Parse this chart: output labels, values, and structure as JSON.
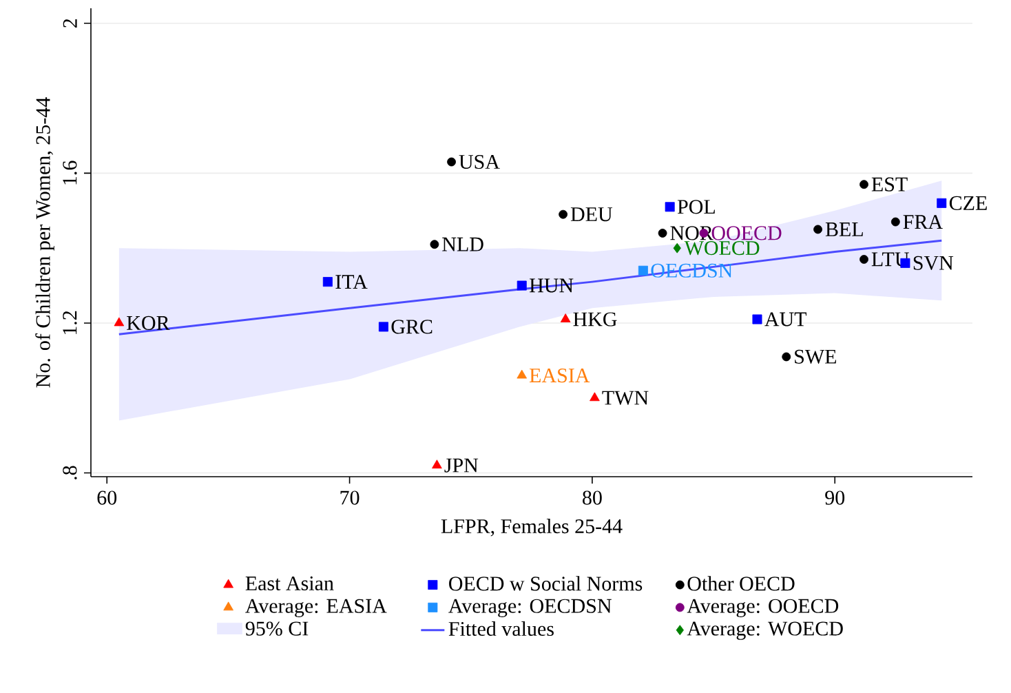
{
  "chart_data": {
    "type": "scatter",
    "xlabel": "LFPR, Females 25-44",
    "ylabel": "No. of Children per Women, 25-44",
    "xlim": [
      59.34,
      95.67
    ],
    "ylim": [
      0.79,
      2.04
    ],
    "xticks": [
      60,
      70,
      80,
      90
    ],
    "yticks": [
      {
        "value": 0.8,
        "label": ".8"
      },
      1.2,
      1.6,
      2
    ],
    "grid": "y",
    "legend": "bottom",
    "series": [
      {
        "name": "East Asian",
        "color": "#ff0000",
        "marker": "triangle",
        "x": [
          60.5,
          73.6,
          78.9,
          80.1
        ],
        "values": [
          1.2,
          0.82,
          1.21,
          1.0
        ]
      },
      {
        "name": "OECD w Social Norms",
        "color": "#0000ff",
        "marker": "square",
        "x": [
          69.1,
          71.4,
          77.1,
          83.2,
          86.8,
          92.9,
          94.4
        ],
        "values": [
          1.31,
          1.19,
          1.3,
          1.51,
          1.21,
          1.36,
          1.52
        ]
      },
      {
        "name": "Other OECD",
        "color": "#000000",
        "marker": "circle",
        "x": [
          73.5,
          74.2,
          78.8,
          82.9,
          88.0,
          89.3,
          91.2,
          92.5,
          91.2
        ],
        "values": [
          1.41,
          1.63,
          1.49,
          1.44,
          1.11,
          1.45,
          1.57,
          1.47,
          1.37
        ]
      },
      {
        "name": "Average: EASIA",
        "color": "#ff7f0e",
        "marker": "triangle",
        "x": [
          77.1
        ],
        "values": [
          1.06
        ]
      },
      {
        "name": "Average: OECDSN",
        "color": "#1e90ff",
        "marker": "square",
        "x": [
          82.1
        ],
        "values": [
          1.34
        ]
      },
      {
        "name": "Average: OOECD",
        "color": "#800080",
        "marker": "circle",
        "x": [
          84.6
        ],
        "values": [
          1.44
        ]
      },
      {
        "name": "Fitted values",
        "type": "line",
        "color": "#4b4bff",
        "line_style": "solid",
        "marker": "none",
        "x": [
          60.5,
          70,
          77,
          80,
          85,
          90,
          94.4
        ],
        "values": [
          1.17,
          1.24,
          1.29,
          1.31,
          1.35,
          1.39,
          1.42
        ],
        "lower": [
          0.94,
          1.05,
          1.19,
          1.24,
          1.27,
          1.28,
          1.26
        ],
        "upper": [
          1.4,
          1.39,
          1.4,
          1.39,
          1.42,
          1.5,
          1.58
        ]
      },
      {
        "name": "Average: WOECD",
        "color": "#008000",
        "marker": "diamond",
        "x": [
          83.5
        ],
        "values": [
          1.4
        ]
      }
    ],
    "annotations": [
      "95% CI",
      {
        "text": "KOR",
        "x": 60.5,
        "y": 1.2
      },
      {
        "text": "JPN",
        "x": 73.6,
        "y": 0.82
      },
      {
        "text": "HKG",
        "x": 78.9,
        "y": 1.21
      },
      {
        "text": "TWN",
        "x": 80.1,
        "y": 1.0
      },
      {
        "text": "ITA",
        "x": 69.1,
        "y": 1.31
      },
      {
        "text": "GRC",
        "x": 71.4,
        "y": 1.19
      },
      {
        "text": "HUN",
        "x": 77.1,
        "y": 1.3
      },
      {
        "text": "POL",
        "x": 83.2,
        "y": 1.51
      },
      {
        "text": "AUT",
        "x": 86.8,
        "y": 1.21
      },
      {
        "text": "SVN",
        "x": 92.9,
        "y": 1.36
      },
      {
        "text": "CZE",
        "x": 94.4,
        "y": 1.52
      },
      {
        "text": "NLD",
        "x": 73.5,
        "y": 1.41
      },
      {
        "text": "USA",
        "x": 74.2,
        "y": 1.63
      },
      {
        "text": "DEU",
        "x": 78.8,
        "y": 1.49
      },
      {
        "text": "NOR",
        "x": 82.9,
        "y": 1.44
      },
      {
        "text": "SWE",
        "x": 88.0,
        "y": 1.11
      },
      {
        "text": "BEL",
        "x": 89.3,
        "y": 1.45
      },
      {
        "text": "EST",
        "x": 91.2,
        "y": 1.57
      },
      {
        "text": "FRA",
        "x": 92.5,
        "y": 1.47
      },
      {
        "text": "LTU",
        "x": 91.2,
        "y": 1.37
      },
      {
        "text": "EASIA",
        "x": 77.1,
        "y": 1.06
      },
      {
        "text": "OECDSN",
        "x": 82.1,
        "y": 1.34
      },
      {
        "text": "OOECD",
        "x": 84.6,
        "y": 1.44
      },
      {
        "text": "WOECD",
        "x": 83.5,
        "y": 1.4
      }
    ]
  }
}
